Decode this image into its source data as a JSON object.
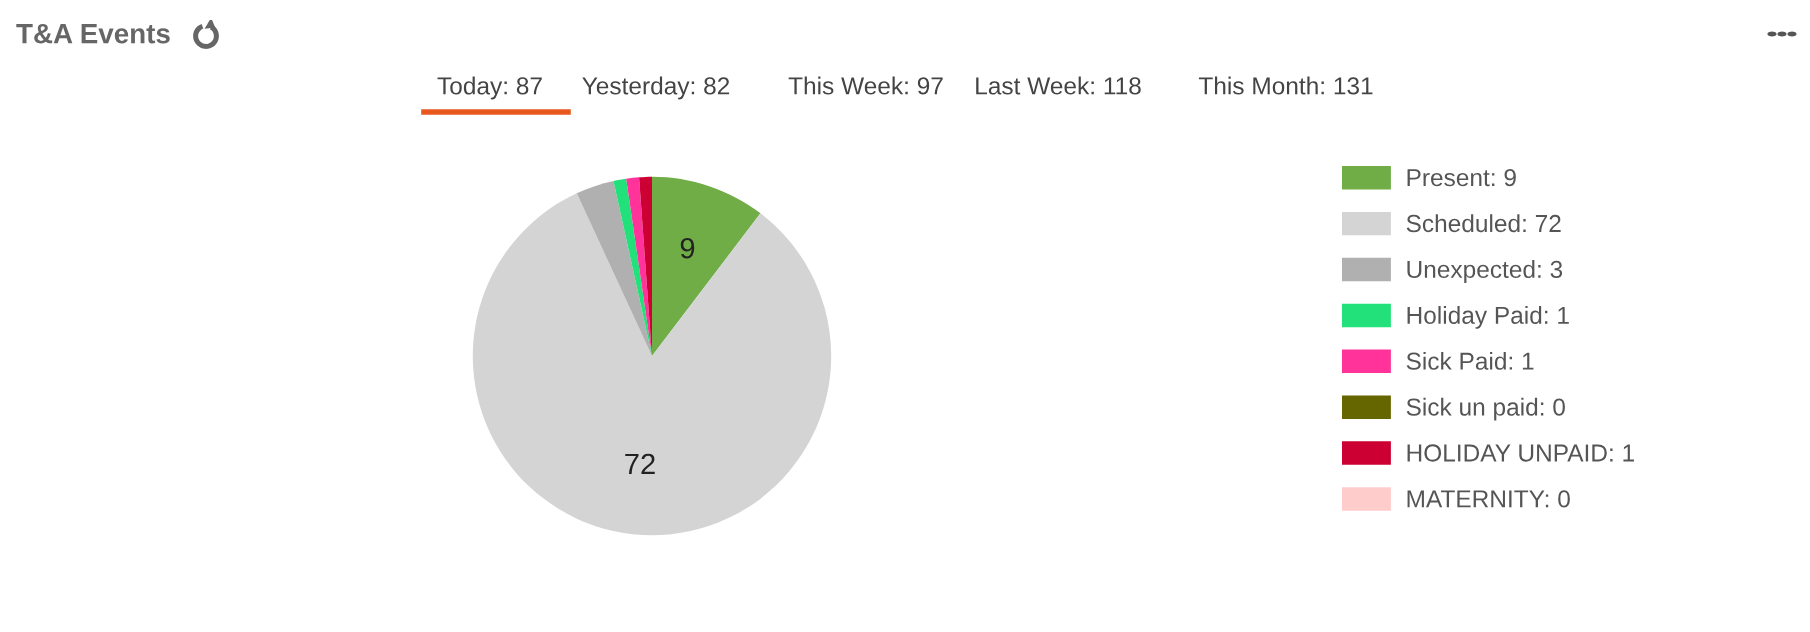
{
  "chart_data": {
    "type": "pie",
    "title": "T&A Events",
    "annotations": [
      "Today: 87",
      "Yesterday: 82",
      "This Week: 97",
      "Last Week: 118",
      "This Month: 131"
    ],
    "categories": [
      "Present: 9",
      "Scheduled: 72",
      "Unexpected: 3",
      "Holiday Paid: 1",
      "Sick Paid: 1",
      "Sick un paid: 0",
      "HOLIDAY UNPAID: 1",
      "MATERNITY: 0"
    ],
    "values": [
      9,
      72,
      3,
      1,
      1,
      0,
      1,
      0
    ],
    "colors": [
      "#70ad47",
      "#d4d4d4",
      "#b0b0b0",
      "#22e07a",
      "#ff3399",
      "#666600",
      "#cc0033",
      "#ffcccc"
    ],
    "value_labels": [
      "9",
      "72",
      null,
      null,
      null,
      null,
      null,
      null
    ],
    "legend": "right"
  }
}
